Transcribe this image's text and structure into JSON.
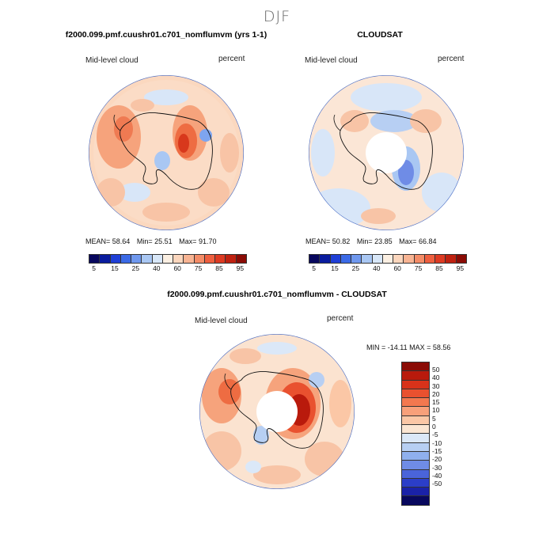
{
  "season": "DJF",
  "variable": "Mid-level cloud",
  "units": "percent",
  "colors": {
    "abs_scale": [
      "#08085e",
      "#0a1c9e",
      "#1f3fd6",
      "#3b6ae6",
      "#6f98ee",
      "#a9c7f3",
      "#d8e7f8",
      "#fbefe2",
      "#fbd6bd",
      "#f8b493",
      "#f48c67",
      "#ee5f3f",
      "#dd3a22",
      "#bf2110",
      "#8a0b05"
    ],
    "diff_scale": [
      "#8a0b05",
      "#b91a0c",
      "#d8321a",
      "#e9512f",
      "#f3784f",
      "#f8a07a",
      "#fbc7a6",
      "#fbe6d3",
      "#dbe8f8",
      "#b7cff3",
      "#8fb0ee",
      "#6f8ce6",
      "#4a64da",
      "#2b3ec8",
      "#1a22a8",
      "#08085e"
    ],
    "ocean_base": "#fbe0cc",
    "map_border": "#4a6fc8",
    "coast": "#111111"
  },
  "panels": {
    "model": {
      "title": "f2000.099.pmf.cuushr01.c701_nomflumvm (yrs 1-1)",
      "mean_label": "MEAN=",
      "mean": "58.64",
      "min_label": "Min=",
      "min": "25.51",
      "max_label": "Max=",
      "max": "91.70"
    },
    "obs": {
      "title": "CLOUDSAT",
      "mean_label": "MEAN=",
      "mean": "50.82",
      "min_label": "Min=",
      "min": "23.85",
      "max_label": "Max=",
      "max": "66.84"
    },
    "diff": {
      "title": "f2000.099.pmf.cuushr01.c701_nomflumvm - CLOUDSAT",
      "minmax": "MIN = -14.11 MAX =  58.56"
    }
  },
  "chart_data": [
    {
      "type": "heatmap",
      "title": "f2000.099.pmf.cuushr01.c701_nomflumvm (yrs 1-1)",
      "variable": "Mid-level cloud",
      "units": "percent",
      "projection": "south-polar stereographic",
      "stats": {
        "mean": 58.64,
        "min": 25.51,
        "max": 91.7
      },
      "colorbar_ticks": [
        "5",
        "15",
        "25",
        "40",
        "60",
        "75",
        "85",
        "95"
      ]
    },
    {
      "type": "heatmap",
      "title": "CLOUDSAT",
      "variable": "Mid-level cloud",
      "units": "percent",
      "projection": "south-polar stereographic",
      "stats": {
        "mean": 50.82,
        "min": 23.85,
        "max": 66.84
      },
      "colorbar_ticks": [
        "5",
        "15",
        "25",
        "40",
        "60",
        "75",
        "85",
        "95"
      ]
    },
    {
      "type": "heatmap",
      "title": "f2000.099.pmf.cuushr01.c701_nomflumvm - CLOUDSAT",
      "variable": "Mid-level cloud",
      "units": "percent",
      "projection": "south-polar stereographic",
      "stats": {
        "min": -14.11,
        "max": 58.56
      },
      "colorbar_levels": [
        "50",
        "40",
        "30",
        "20",
        "15",
        "10",
        "5",
        "0",
        "-5",
        "-10",
        "-15",
        "-20",
        "-30",
        "-40",
        "-50"
      ]
    }
  ]
}
